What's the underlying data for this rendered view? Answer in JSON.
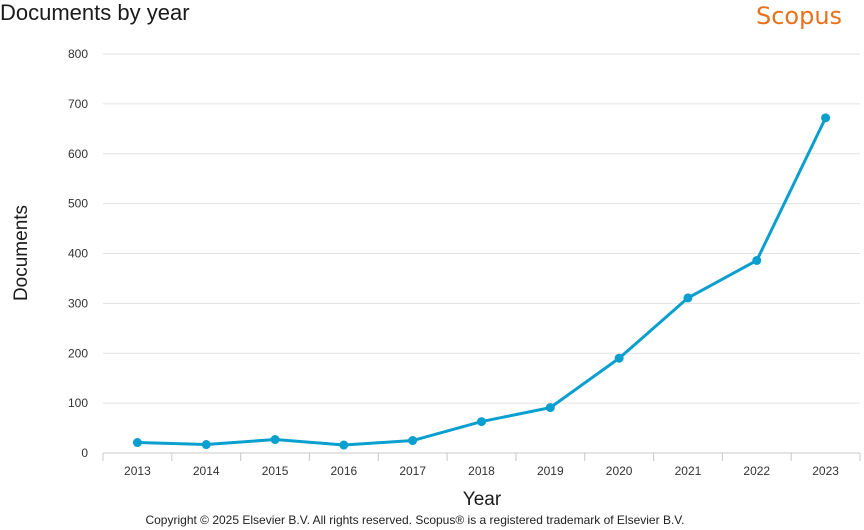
{
  "header": {
    "title": "Documents by year",
    "brand": "Scopus",
    "brand_color": "#e9711c"
  },
  "footer": {
    "copyright": "Copyright © 2025 Elsevier B.V. All rights reserved. Scopus® is a registered trademark of Elsevier B.V."
  },
  "chart_data": {
    "type": "line",
    "title": "Documents by year",
    "xlabel": "Year",
    "ylabel": "Documents",
    "categories": [
      "2013",
      "2014",
      "2015",
      "2016",
      "2017",
      "2018",
      "2019",
      "2020",
      "2021",
      "2022",
      "2023"
    ],
    "series": [
      {
        "values": [
          21,
          17,
          27,
          16,
          25,
          63,
          91,
          190,
          311,
          386,
          672
        ],
        "color": "#0a9fcf"
      }
    ],
    "ylim": [
      0,
      800
    ],
    "yticks": [
      0,
      100,
      200,
      300,
      400,
      500,
      600,
      700,
      800
    ],
    "grid": true,
    "legend": "none"
  }
}
